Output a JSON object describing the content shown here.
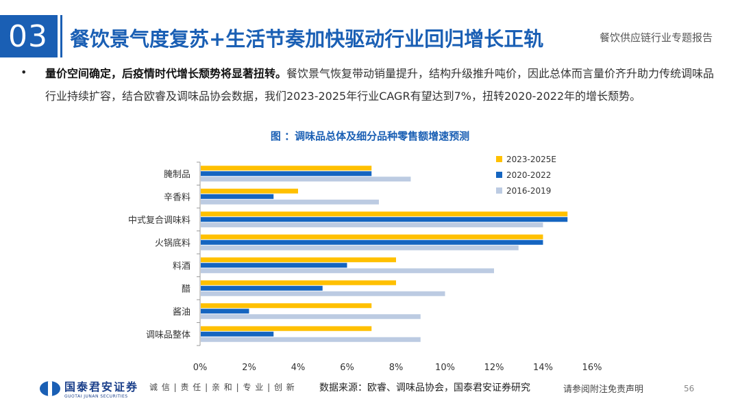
{
  "header": {
    "section_number": "03",
    "title": "餐饮景气度复苏+生活节奏加快驱动行业回归增长正轨",
    "report_name": "餐饮供应链行业专题报告"
  },
  "body": {
    "bullet": "•",
    "lead": "量价空间确定，后疫情时代增长颓势将显著扭转。",
    "text": "餐饮景气恢复带动销量提升，结构升级推升吨价，因此总体而言量价齐升助力传统调味品行业持续扩容，结合欧睿及调味品协会数据，我们2023-2025年行业CAGR有望达到7%，扭转2020-2022年的增长颓势。"
  },
  "chart_data": {
    "type": "bar",
    "orientation": "horizontal",
    "title": "图 ：调味品总体及细分品种零售额增速预测",
    "categories": [
      "腌制品",
      "辛香料",
      "中式复合调味料",
      "火锅底料",
      "料酒",
      "醋",
      "酱油",
      "调味品整体"
    ],
    "series": [
      {
        "name": "2023-2025E",
        "color": "#ffc000",
        "values": [
          7,
          4,
          15,
          14,
          8,
          8,
          7,
          7
        ]
      },
      {
        "name": "2020-2022",
        "color": "#1565c0",
        "values": [
          7,
          3,
          15,
          14,
          6,
          5,
          2,
          3
        ]
      },
      {
        "name": "2016-2019",
        "color": "#bccbe2",
        "values": [
          8.6,
          7.3,
          14,
          13,
          12,
          10,
          9,
          9
        ]
      }
    ],
    "xlim": [
      0,
      16
    ],
    "xticks": [
      0,
      2,
      4,
      6,
      8,
      10,
      12,
      14,
      16
    ],
    "tick_format": "{v}%",
    "legend_position": "top-right",
    "grid": false
  },
  "footer": {
    "logo_cn": "国泰君安证券",
    "logo_en": "GUOTAI JUNAN SECURITIES",
    "motto": "诚 信 | 责 任 | 亲 和 | 专 业 | 创 新",
    "source": "数据来源：欧睿、调味品协会，国泰君安证券研究",
    "disclaimer": "请参阅附注免责声明",
    "page_number": "56"
  }
}
